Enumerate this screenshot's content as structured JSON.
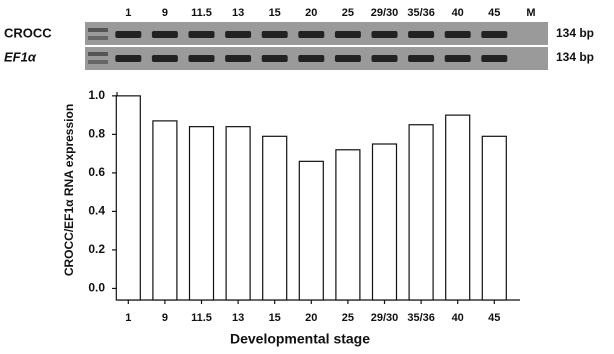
{
  "gel": {
    "lanes": [
      "1",
      "9",
      "11.5",
      "13",
      "15",
      "20",
      "25",
      "29/30",
      "35/36",
      "40",
      "45",
      "M"
    ],
    "rows": [
      {
        "label": "CROCC",
        "size": "134 bp"
      },
      {
        "label": "EF1α",
        "size": "134 bp"
      }
    ]
  },
  "chart_data": {
    "type": "bar",
    "ylabel": "CROCC/EF1α RNA expression",
    "xlabel": "Developmental stage",
    "categories": [
      "1",
      "9",
      "11.5",
      "13",
      "15",
      "20",
      "25",
      "29/30",
      "35/36",
      "40",
      "45"
    ],
    "values": [
      1.0,
      0.87,
      0.84,
      0.84,
      0.79,
      0.66,
      0.72,
      0.75,
      0.85,
      0.9,
      0.79
    ],
    "color": "#ffffff",
    "ylim": [
      -0.06,
      1.02
    ],
    "yticks": [
      {
        "value": 0,
        "label": "0.0"
      },
      0.2,
      0.4,
      0.6,
      0.8,
      {
        "value": 1,
        "label": "1.0"
      }
    ]
  }
}
